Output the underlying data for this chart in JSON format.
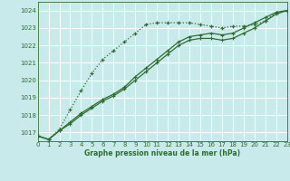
{
  "title": "Graphe pression niveau de la mer (hPa)",
  "bg_color": "#c8eaea",
  "grid_color": "#ffffff",
  "line_color": "#2d6e2d",
  "x_min": 0,
  "x_max": 23,
  "y_min": 1016.5,
  "y_max": 1024.5,
  "yticks": [
    1017,
    1018,
    1019,
    1020,
    1021,
    1022,
    1023,
    1024
  ],
  "xticks": [
    0,
    1,
    2,
    3,
    4,
    5,
    6,
    7,
    8,
    9,
    10,
    11,
    12,
    13,
    14,
    15,
    16,
    17,
    18,
    19,
    20,
    21,
    22,
    23
  ],
  "series1_x": [
    0,
    1,
    2,
    3,
    4,
    5,
    6,
    7,
    8,
    9,
    10,
    11,
    12,
    13,
    14,
    15,
    16,
    17,
    18,
    19,
    20,
    21,
    22,
    23
  ],
  "series1_y": [
    1016.8,
    1016.6,
    1017.1,
    1017.6,
    1018.1,
    1018.5,
    1018.9,
    1019.2,
    1019.6,
    1020.2,
    1020.7,
    1021.2,
    1021.7,
    1022.2,
    1022.5,
    1022.6,
    1022.7,
    1022.6,
    1022.7,
    1023.0,
    1023.3,
    1023.6,
    1023.9,
    1024.0
  ],
  "series2_x": [
    0,
    1,
    2,
    3,
    4,
    5,
    6,
    7,
    8,
    9,
    10,
    11,
    12,
    13,
    14,
    15,
    16,
    17,
    18,
    19,
    20,
    21,
    22,
    23
  ],
  "series2_y": [
    1016.8,
    1016.6,
    1017.1,
    1017.5,
    1018.0,
    1018.4,
    1018.8,
    1019.1,
    1019.5,
    1020.0,
    1020.5,
    1021.0,
    1021.5,
    1022.0,
    1022.3,
    1022.4,
    1022.4,
    1022.3,
    1022.4,
    1022.7,
    1023.0,
    1023.4,
    1023.8,
    1024.0
  ],
  "series3_x": [
    0,
    1,
    2,
    3,
    4,
    5,
    6,
    7,
    8,
    9,
    10,
    11,
    12,
    13,
    14,
    15,
    16,
    17,
    18,
    19,
    20,
    21,
    22,
    23
  ],
  "series3_y": [
    1016.8,
    1016.6,
    1017.2,
    1018.3,
    1019.4,
    1020.4,
    1021.2,
    1021.7,
    1022.2,
    1022.7,
    1023.2,
    1023.3,
    1023.3,
    1023.3,
    1023.3,
    1023.2,
    1023.1,
    1023.0,
    1023.1,
    1023.1,
    1023.2,
    1023.4,
    1023.9,
    1024.0
  ]
}
